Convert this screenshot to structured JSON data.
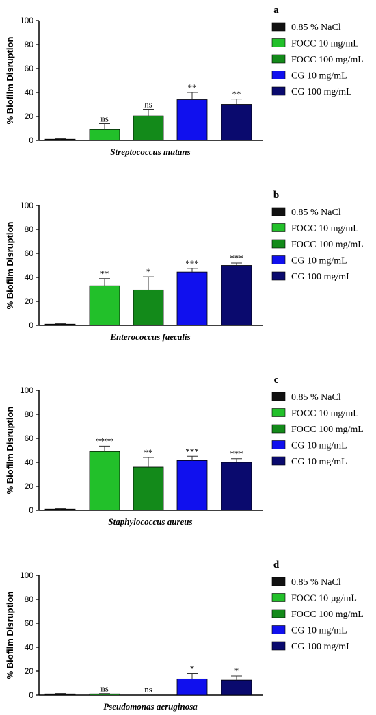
{
  "chart_data": [
    {
      "type": "bar",
      "panel": "a",
      "categories": [
        "0.85 % NaCl",
        "FOCC 10 mg/mL",
        "FOCC 100 mg/mL",
        "CG 10 mg/mL",
        "CG 100 mg/mL"
      ],
      "values": [
        1,
        9,
        20.5,
        34,
        30
      ],
      "errors": [
        0.4,
        5,
        5.5,
        6,
        4.5
      ],
      "significance": [
        "",
        "ns",
        "ns",
        "**",
        "**"
      ],
      "colors": [
        "#111111",
        "#22c02a",
        "#138a1a",
        "#1010ee",
        "#0a0a6e"
      ],
      "legend": [
        "0.85 % NaCl",
        "FOCC 10 mg/mL",
        "FOCC 100 mg/mL",
        "CG 10 mg/mL",
        "CG 100 mg/mL"
      ],
      "xlabel": "Streptococcus mutans",
      "ylabel": "% Biofilm Disruption",
      "ylim": [
        0,
        100
      ],
      "yticks": [
        0,
        20,
        40,
        60,
        80,
        100
      ],
      "grid": false,
      "legend_position": "right"
    },
    {
      "type": "bar",
      "panel": "b",
      "categories": [
        "0.85 % NaCl",
        "FOCC 10 mg/mL",
        "FOCC 100 mg/mL",
        "CG 10 mg/mL",
        "CG 100 mg/mL"
      ],
      "values": [
        1,
        33,
        29.5,
        44.5,
        50
      ],
      "errors": [
        0.4,
        6,
        11,
        3,
        2
      ],
      "significance": [
        "",
        "**",
        "*",
        "***",
        "***"
      ],
      "colors": [
        "#111111",
        "#22c02a",
        "#138a1a",
        "#1010ee",
        "#0a0a6e"
      ],
      "legend": [
        "0.85 % NaCl",
        "FOCC 10 mg/mL",
        "FOCC 100 mg/mL",
        "CG 10 mg/mL",
        "CG 100 mg/mL"
      ],
      "xlabel": "Enterococcus faecalis",
      "ylabel": "% Biofilm Disruption",
      "ylim": [
        0,
        100
      ],
      "yticks": [
        0,
        20,
        40,
        60,
        80,
        100
      ],
      "grid": false,
      "legend_position": "right"
    },
    {
      "type": "bar",
      "panel": "c",
      "categories": [
        "0.85 % NaCl",
        "FOCC 10 mg/mL",
        "FOCC 100 mg/mL",
        "CG 10 mg/mL",
        "CG 10 mg/mL"
      ],
      "values": [
        1,
        49,
        36,
        41.5,
        40
      ],
      "errors": [
        0.4,
        4.5,
        8,
        3.5,
        3
      ],
      "significance": [
        "",
        "****",
        "**",
        "***",
        "***"
      ],
      "colors": [
        "#111111",
        "#22c02a",
        "#138a1a",
        "#1010ee",
        "#0a0a6e"
      ],
      "legend": [
        "0.85 % NaCl",
        "FOCC 10 mg/mL",
        "FOCC 100 mg/mL",
        "CG 10 mg/mL",
        "CG 10 mg/mL"
      ],
      "xlabel": "Staphylococcus aureus",
      "ylabel": "% Biofilm Disruption",
      "ylim": [
        0,
        100
      ],
      "yticks": [
        0,
        20,
        40,
        60,
        80,
        100
      ],
      "grid": false,
      "legend_position": "right"
    },
    {
      "type": "bar",
      "panel": "d",
      "categories": [
        "0.85 % NaCl",
        "FOCC 10 µg/mL",
        "FOCC 100 mg/mL",
        "CG 10 mg/mL",
        "CG 100 mg/mL"
      ],
      "values": [
        1,
        1,
        0,
        13.5,
        12.5
      ],
      "errors": [
        0.4,
        0.3,
        0,
        4.5,
        3.5
      ],
      "significance": [
        "",
        "ns",
        "ns",
        "*",
        "*"
      ],
      "colors": [
        "#111111",
        "#22c02a",
        "#138a1a",
        "#1010ee",
        "#0a0a6e"
      ],
      "legend": [
        "0.85 % NaCl",
        "FOCC 10 µg/mL",
        "FOCC 100 mg/mL",
        "CG 10 mg/mL",
        "CG 100 mg/mL"
      ],
      "xlabel": "Pseudomonas aeruginosa",
      "ylabel": "% Biofilm Disruption",
      "ylim": [
        0,
        100
      ],
      "yticks": [
        0,
        20,
        40,
        60,
        80,
        100
      ],
      "grid": false,
      "legend_position": "right"
    }
  ]
}
